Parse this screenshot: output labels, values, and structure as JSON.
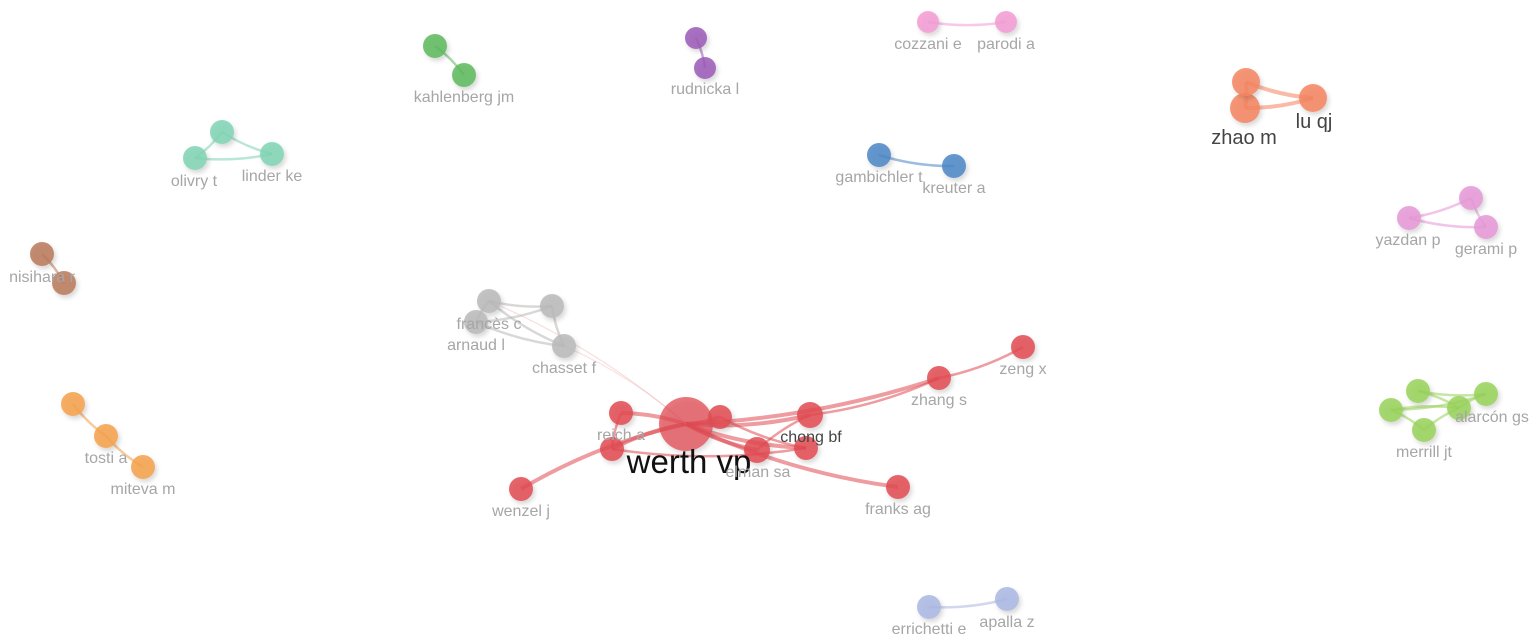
{
  "clusters": [
    {
      "id": "red",
      "color": "#e04a52"
    },
    {
      "id": "gray",
      "color": "#b8b8b8"
    },
    {
      "id": "green",
      "color": "#5cb85c"
    },
    {
      "id": "purple",
      "color": "#9b59b6"
    },
    {
      "id": "pink",
      "color": "#f29bd4"
    },
    {
      "id": "salmon",
      "color": "#f4845f"
    },
    {
      "id": "teal",
      "color": "#7fd3b4"
    },
    {
      "id": "blue",
      "color": "#4a86c5"
    },
    {
      "id": "magenta",
      "color": "#e596d6"
    },
    {
      "id": "brown",
      "color": "#b9785a"
    },
    {
      "id": "orange",
      "color": "#f4a14a"
    },
    {
      "id": "lime",
      "color": "#98d15b"
    },
    {
      "id": "lavender",
      "color": "#a9b7e2"
    }
  ],
  "nodes": [
    {
      "id": "werth_vp",
      "label": "werth vp",
      "cluster": "red",
      "weight": "major"
    },
    {
      "id": "chong_bf",
      "label": "chong bf",
      "cluster": "red"
    },
    {
      "id": "reich_a",
      "label": "reich a",
      "cluster": "red"
    },
    {
      "id": "elman_sa",
      "label": "elman sa",
      "cluster": "red"
    },
    {
      "id": "zhang_s",
      "label": "zhang s",
      "cluster": "red"
    },
    {
      "id": "zeng_x",
      "label": "zeng x",
      "cluster": "red"
    },
    {
      "id": "franks_ag",
      "label": "franks ag",
      "cluster": "red"
    },
    {
      "id": "wenzel_j",
      "label": "wenzel j",
      "cluster": "red"
    },
    {
      "id": "red_u1",
      "label": "",
      "cluster": "red"
    },
    {
      "id": "red_u2",
      "label": "",
      "cluster": "red"
    },
    {
      "id": "red_u3",
      "label": "",
      "cluster": "red"
    },
    {
      "id": "frances_c",
      "label": "francès c",
      "cluster": "gray"
    },
    {
      "id": "arnaud_l",
      "label": "arnaud l",
      "cluster": "gray"
    },
    {
      "id": "chasset_f",
      "label": "chasset f",
      "cluster": "gray"
    },
    {
      "id": "gray_u1",
      "label": "",
      "cluster": "gray"
    },
    {
      "id": "kahlenberg_jm",
      "label": "kahlenberg jm",
      "cluster": "green"
    },
    {
      "id": "green_u1",
      "label": "",
      "cluster": "green"
    },
    {
      "id": "rudnicka_l",
      "label": "rudnicka l",
      "cluster": "purple"
    },
    {
      "id": "purple_u1",
      "label": "",
      "cluster": "purple"
    },
    {
      "id": "cozzani_e",
      "label": "cozzani e",
      "cluster": "pink"
    },
    {
      "id": "parodi_a",
      "label": "parodi a",
      "cluster": "pink"
    },
    {
      "id": "zhao_m",
      "label": "zhao m",
      "cluster": "salmon",
      "weight": "medium"
    },
    {
      "id": "lu_qj",
      "label": "lu qj",
      "cluster": "salmon",
      "weight": "medium"
    },
    {
      "id": "salmon_u1",
      "label": "",
      "cluster": "salmon"
    },
    {
      "id": "olivry_t",
      "label": "olivry t",
      "cluster": "teal"
    },
    {
      "id": "linder_ke",
      "label": "linder ke",
      "cluster": "teal"
    },
    {
      "id": "teal_u1",
      "label": "",
      "cluster": "teal"
    },
    {
      "id": "gambichler_t",
      "label": "gambichler t",
      "cluster": "blue"
    },
    {
      "id": "kreuter_a",
      "label": "kreuter a",
      "cluster": "blue"
    },
    {
      "id": "yazdan_p",
      "label": "yazdan p",
      "cluster": "magenta"
    },
    {
      "id": "gerami_p",
      "label": "gerami p",
      "cluster": "magenta"
    },
    {
      "id": "magenta_u1",
      "label": "",
      "cluster": "magenta"
    },
    {
      "id": "nisihara_r",
      "label": "nisihara r",
      "cluster": "brown"
    },
    {
      "id": "brown_u1",
      "label": "",
      "cluster": "brown"
    },
    {
      "id": "tosti_a",
      "label": "tosti a",
      "cluster": "orange"
    },
    {
      "id": "miteva_m",
      "label": "miteva m",
      "cluster": "orange"
    },
    {
      "id": "orange_u1",
      "label": "",
      "cluster": "orange"
    },
    {
      "id": "alarcon_gs",
      "label": "alarcón gs",
      "cluster": "lime"
    },
    {
      "id": "merrill_jt",
      "label": "merrill jt",
      "cluster": "lime"
    },
    {
      "id": "lime_u1",
      "label": "",
      "cluster": "lime"
    },
    {
      "id": "lime_u2",
      "label": "",
      "cluster": "lime"
    },
    {
      "id": "lime_u3",
      "label": "",
      "cluster": "lime"
    },
    {
      "id": "errichetti_e",
      "label": "errichetti e",
      "cluster": "lavender"
    },
    {
      "id": "apalla_z",
      "label": "apalla z",
      "cluster": "lavender"
    }
  ],
  "edges": [
    [
      "werth_vp",
      "chong_bf"
    ],
    [
      "werth_vp",
      "reich_a"
    ],
    [
      "werth_vp",
      "elman_sa"
    ],
    [
      "werth_vp",
      "zhang_s"
    ],
    [
      "werth_vp",
      "franks_ag"
    ],
    [
      "werth_vp",
      "wenzel_j"
    ],
    [
      "werth_vp",
      "red_u1"
    ],
    [
      "werth_vp",
      "red_u2"
    ],
    [
      "werth_vp",
      "red_u3"
    ],
    [
      "werth_vp",
      "chasset_f"
    ],
    [
      "werth_vp",
      "frances_c"
    ],
    [
      "zhang_s",
      "zeng_x"
    ],
    [
      "chong_bf",
      "zhang_s"
    ],
    [
      "chong_bf",
      "elman_sa"
    ],
    [
      "reich_a",
      "red_u1"
    ],
    [
      "red_u1",
      "red_u3"
    ],
    [
      "red_u2",
      "red_u3"
    ],
    [
      "frances_c",
      "arnaud_l"
    ],
    [
      "frances_c",
      "chasset_f"
    ],
    [
      "frances_c",
      "gray_u1"
    ],
    [
      "arnaud_l",
      "chasset_f"
    ],
    [
      "gray_u1",
      "chasset_f"
    ],
    [
      "arnaud_l",
      "gray_u1"
    ],
    [
      "kahlenberg_jm",
      "green_u1"
    ],
    [
      "rudnicka_l",
      "purple_u1"
    ],
    [
      "cozzani_e",
      "parodi_a"
    ],
    [
      "zhao_m",
      "lu_qj"
    ],
    [
      "zhao_m",
      "salmon_u1"
    ],
    [
      "salmon_u1",
      "lu_qj"
    ],
    [
      "olivry_t",
      "linder_ke"
    ],
    [
      "olivry_t",
      "teal_u1"
    ],
    [
      "teal_u1",
      "linder_ke"
    ],
    [
      "gambichler_t",
      "kreuter_a"
    ],
    [
      "yazdan_p",
      "gerami_p"
    ],
    [
      "yazdan_p",
      "magenta_u1"
    ],
    [
      "magenta_u1",
      "gerami_p"
    ],
    [
      "nisihara_r",
      "brown_u1"
    ],
    [
      "tosti_a",
      "miteva_m"
    ],
    [
      "orange_u1",
      "tosti_a"
    ],
    [
      "alarcon_gs",
      "merrill_jt"
    ],
    [
      "alarcon_gs",
      "lime_u1"
    ],
    [
      "alarcon_gs",
      "lime_u2"
    ],
    [
      "lime_u1",
      "lime_u3"
    ],
    [
      "lime_u2",
      "lime_u3"
    ],
    [
      "merrill_jt",
      "lime_u1"
    ],
    [
      "lime_u3",
      "alarcon_gs"
    ],
    [
      "errichetti_e",
      "apalla_z"
    ]
  ]
}
